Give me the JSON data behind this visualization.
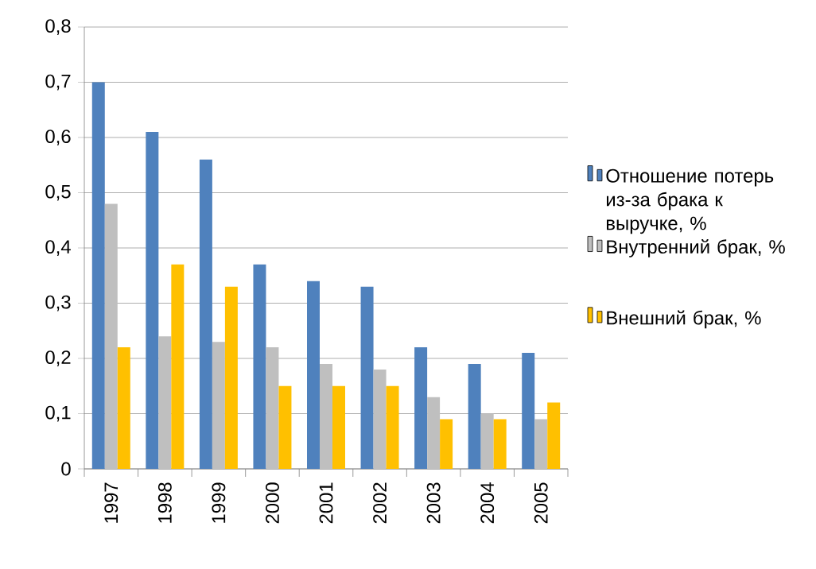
{
  "chart_data": {
    "type": "bar",
    "categories": [
      "1997",
      "1998",
      "1999",
      "2000",
      "2001",
      "2002",
      "2003",
      "2004",
      "2005"
    ],
    "series": [
      {
        "name": "Отношение потерь из-за брака к выручке, %",
        "color": "#4f81bd",
        "values": [
          0.7,
          0.61,
          0.56,
          0.37,
          0.34,
          0.33,
          0.22,
          0.19,
          0.21
        ]
      },
      {
        "name": "Внутренний брак, %",
        "color": "#bfbfbf",
        "values": [
          0.48,
          0.24,
          0.23,
          0.22,
          0.19,
          0.18,
          0.13,
          0.1,
          0.09
        ]
      },
      {
        "name": "Внешний брак, %",
        "color": "#ffc000",
        "values": [
          0.22,
          0.37,
          0.33,
          0.15,
          0.15,
          0.15,
          0.09,
          0.09,
          0.12
        ]
      }
    ],
    "ylim": [
      0,
      0.8
    ],
    "yticks": [
      {
        "value": 0,
        "label": "0"
      },
      {
        "value": 0.1,
        "label": "0,1"
      },
      {
        "value": 0.2,
        "label": "0,2"
      },
      {
        "value": 0.3,
        "label": "0,3"
      },
      {
        "value": 0.4,
        "label": "0,4"
      },
      {
        "value": 0.5,
        "label": "0,5"
      },
      {
        "value": 0.6,
        "label": "0,6"
      },
      {
        "value": 0.7,
        "label": "0,7"
      },
      {
        "value": 0.8,
        "label": "0,8"
      }
    ],
    "grid": "y",
    "legend": "right"
  }
}
